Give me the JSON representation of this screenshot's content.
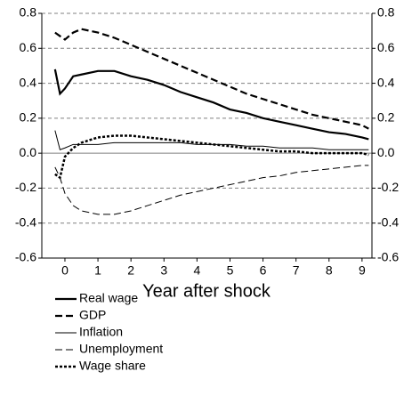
{
  "chart_data": {
    "type": "line",
    "x_label": "Year after shock",
    "x": [
      -0.3,
      -0.15,
      0,
      0.25,
      0.5,
      1,
      1.5,
      2,
      2.5,
      3,
      3.5,
      4,
      4.5,
      5,
      5.5,
      6,
      6.5,
      7,
      7.5,
      8,
      8.5,
      9,
      9.2
    ],
    "xlim": [
      -0.7,
      9.3
    ],
    "xticks": [
      0,
      1,
      2,
      3,
      4,
      5,
      6,
      7,
      8,
      9
    ],
    "ylim": [
      -0.6,
      0.8
    ],
    "yticks": [
      {
        "value": -0.6,
        "label": "-0.6"
      },
      {
        "value": -0.4,
        "label": "-0.4"
      },
      {
        "value": -0.2,
        "label": "-0.2"
      },
      {
        "value": 0,
        "label": "0.0"
      },
      {
        "value": 0.2,
        "label": "0.2"
      },
      {
        "value": 0.4,
        "label": "0.4"
      },
      {
        "value": 0.6,
        "label": "0.6"
      },
      {
        "value": 0.8,
        "label": "0.8"
      }
    ],
    "grid": true,
    "legend": "below",
    "series": [
      {
        "name": "Real wage",
        "color": "#000000",
        "width": 2.2,
        "dash": "none",
        "values": [
          0.48,
          0.34,
          0.37,
          0.44,
          0.45,
          0.47,
          0.47,
          0.44,
          0.42,
          0.39,
          0.35,
          0.32,
          0.29,
          0.25,
          0.23,
          0.2,
          0.18,
          0.16,
          0.14,
          0.12,
          0.11,
          0.09,
          0.08
        ]
      },
      {
        "name": "GDP",
        "color": "#000000",
        "width": 2.2,
        "dash": "8 4",
        "values": [
          0.69,
          0.67,
          0.65,
          0.69,
          0.71,
          0.69,
          0.66,
          0.62,
          0.58,
          0.54,
          0.5,
          0.46,
          0.42,
          0.38,
          0.34,
          0.31,
          0.28,
          0.25,
          0.22,
          0.2,
          0.18,
          0.16,
          0.14
        ]
      },
      {
        "name": "Inflation",
        "color": "#000000",
        "width": 1,
        "dash": "none",
        "values": [
          0.13,
          0.02,
          0.03,
          0.05,
          0.05,
          0.05,
          0.06,
          0.06,
          0.06,
          0.06,
          0.06,
          0.05,
          0.05,
          0.05,
          0.04,
          0.04,
          0.03,
          0.03,
          0.03,
          0.02,
          0.02,
          0.02,
          0.02
        ]
      },
      {
        "name": "Unemployment",
        "color": "#000000",
        "width": 1,
        "dash": "8 4",
        "values": [
          -0.08,
          -0.14,
          -0.23,
          -0.3,
          -0.33,
          -0.35,
          -0.35,
          -0.33,
          -0.3,
          -0.27,
          -0.24,
          -0.22,
          -0.2,
          -0.18,
          -0.16,
          -0.14,
          -0.13,
          -0.11,
          -0.1,
          -0.09,
          -0.08,
          -0.07,
          -0.07
        ]
      },
      {
        "name": "Wage share",
        "color": "#000000",
        "width": 2.5,
        "dash": "3 2",
        "values": [
          -0.12,
          -0.14,
          -0.02,
          0.03,
          0.06,
          0.09,
          0.1,
          0.1,
          0.09,
          0.08,
          0.07,
          0.06,
          0.05,
          0.04,
          0.03,
          0.02,
          0.01,
          0.01,
          0,
          0,
          0,
          0,
          -0.01
        ]
      }
    ]
  }
}
